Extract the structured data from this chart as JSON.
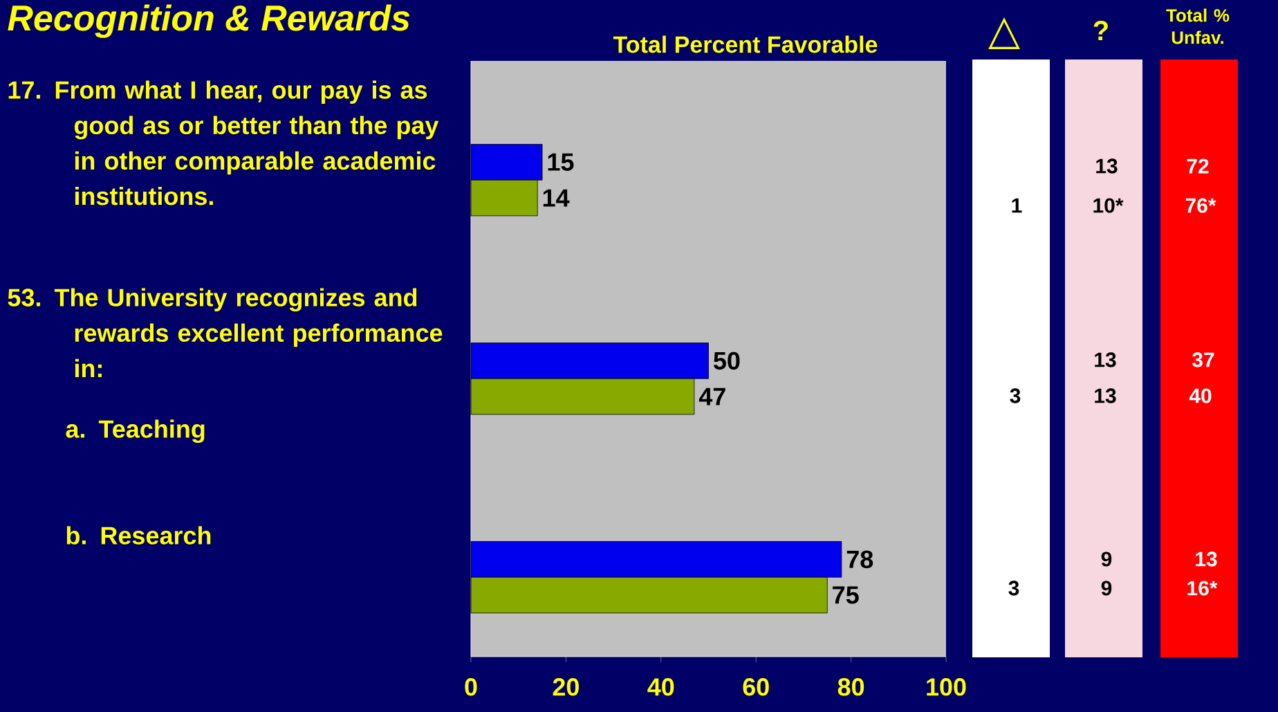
{
  "chart_data": {
    "type": "bar",
    "orientation": "horizontal",
    "title": "Recognition & Rewards",
    "subtitle": "Total Percent Favorable",
    "categories": [
      null,
      null,
      null
    ],
    "series": [
      {
        "color": "#0000ee",
        "values": [
          15,
          50,
          78
        ]
      },
      {
        "color": "#88aa00",
        "values": [
          14,
          47,
          75
        ]
      }
    ],
    "xlim": [
      0,
      100
    ],
    "xticks": [
      0,
      20,
      40,
      60,
      80,
      100
    ],
    "data_labels": true,
    "annotations": [
      "17. From what I hear, our pay is as good as or better than the pay in other comparable academic institutions.",
      "53. The University recognizes and rewards excellent performance in:",
      "a. Teaching",
      "b. Research",
      "△",
      "?",
      "Total % Unfav.",
      "1",
      "3",
      "3",
      "13",
      "10*",
      "13",
      "13",
      "9",
      "9",
      "72",
      "76*",
      "37",
      "40",
      "13",
      "16*"
    ]
  }
}
